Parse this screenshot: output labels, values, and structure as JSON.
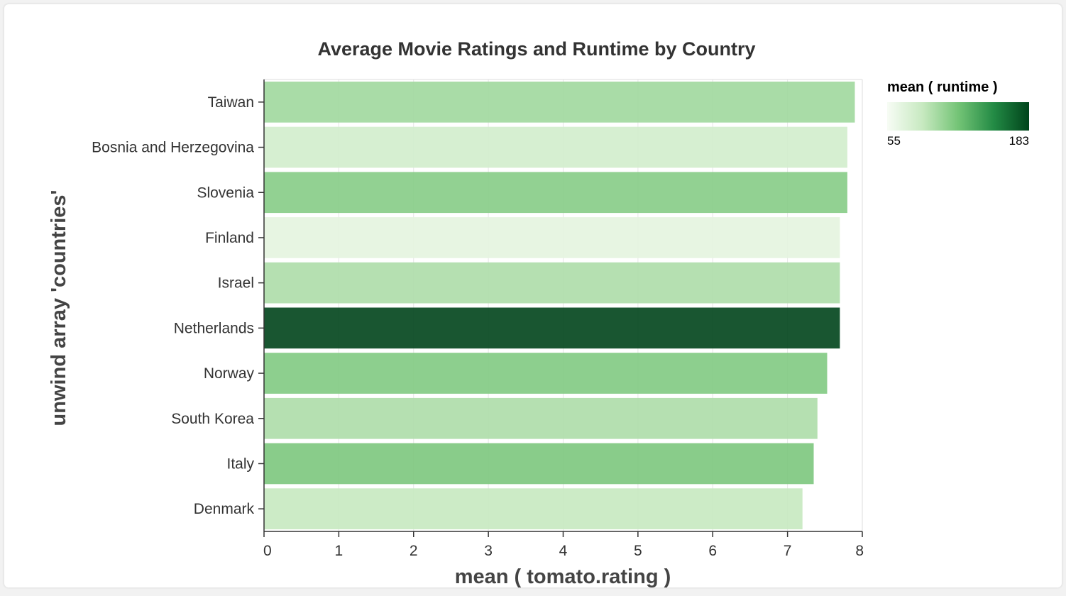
{
  "chart_data": {
    "type": "bar",
    "orientation": "horizontal",
    "title": "Average Movie Ratings and Runtime by Country",
    "xlabel": "mean ( tomato.rating )",
    "ylabel": "unwind array 'countries'",
    "xlim": [
      0,
      8
    ],
    "xticks": [
      "0",
      "1",
      "2",
      "3",
      "4",
      "5",
      "6",
      "7",
      "8"
    ],
    "grid": true,
    "categories": [
      "Taiwan",
      "Bosnia and Herzegovina",
      "Slovenia",
      "Finland",
      "Israel",
      "Netherlands",
      "Norway",
      "South Korea",
      "Italy",
      "Denmark"
    ],
    "values": [
      7.9,
      7.8,
      7.8,
      7.7,
      7.7,
      7.7,
      7.53,
      7.4,
      7.35,
      7.2
    ],
    "color_values": [
      102,
      80,
      112,
      68,
      97,
      183,
      114,
      97,
      116,
      87
    ],
    "legend": {
      "title": "mean ( runtime )",
      "min_label": "55",
      "max_label": "183",
      "min": 55,
      "max": 183,
      "placement": "top-right"
    },
    "colors": {
      "scale_low": "#f7fcf5",
      "scale_mid": "#74c476",
      "scale_high": "#00441b",
      "bar_opacity": 0.9
    }
  }
}
